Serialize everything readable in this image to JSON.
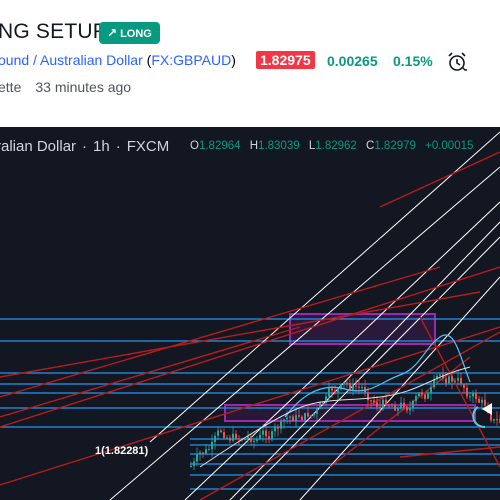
{
  "idea": {
    "title": "NG SETUP",
    "badge": {
      "icon": "arrow-up-right-icon",
      "label": "LONG",
      "color": "#089981"
    },
    "instrument": "ound / Australian Dollar",
    "symbol_open": "(",
    "symbol": "FX:GBPAUD",
    "symbol_close": ")",
    "price": "1.82975",
    "change": "0.00265",
    "change_pct": "0.15%",
    "author": "ette",
    "published": "33 minutes ago",
    "alarm_icon": "alarm-clock-icon"
  },
  "chart": {
    "name": "ralian Dollar",
    "interval": "1h",
    "source": "FXCM",
    "ohlc": {
      "o_label": "O",
      "o": "1.82964",
      "h_label": "H",
      "h": "1.83039",
      "l_label": "L",
      "l": "1.82962",
      "c_label": "C",
      "c": "1.82979",
      "chg": "+0.00015"
    },
    "fib_label": "1(1.82281)",
    "colors": {
      "background": "#131722",
      "up": "#26a69a",
      "down": "#ef5350",
      "levels": "#2196f3",
      "channel": "#ffffff",
      "trend": "#b71c1c",
      "zone": "#9c27b0"
    }
  }
}
